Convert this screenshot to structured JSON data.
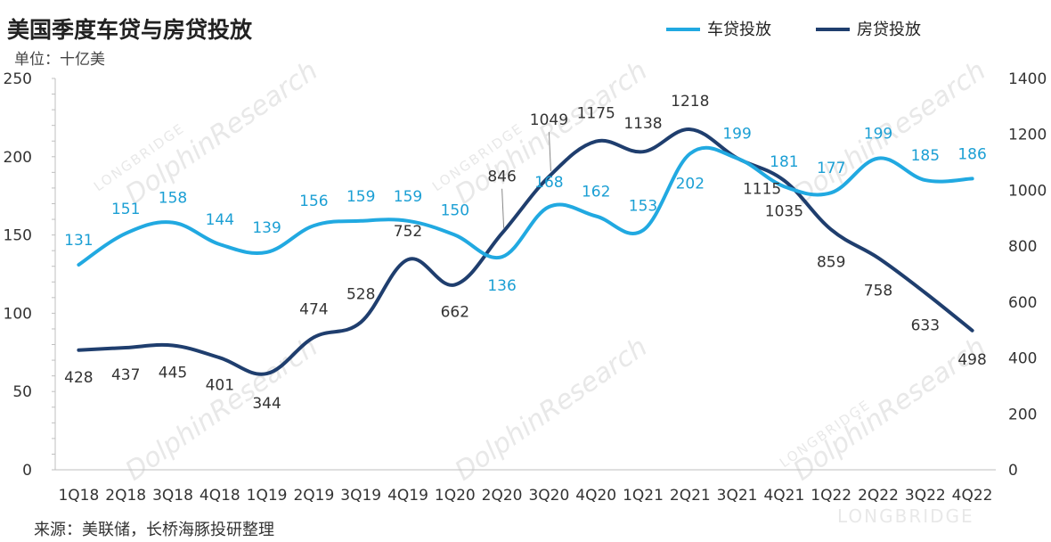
{
  "page": {
    "title": "美国季度车贷与房贷投放",
    "unit": "单位：十亿美",
    "source": "来源：美联储，长桥海豚投研整理",
    "watermark": {
      "brand": "DolphinResearch",
      "company": "LONGBRIDGE",
      "footer_logo": "LONGBRIDGE"
    }
  },
  "colors": {
    "car": "#21a9e1",
    "house": "#1f3e6e",
    "car_label": "#1b9fd4",
    "house_label": "#333333",
    "axis": "#bfbfbf"
  },
  "chart_data": {
    "type": "line",
    "title": "美国季度车贷与房贷投放",
    "xlabel": "",
    "ylabel": "单位：十亿美",
    "categories": [
      "1Q18",
      "2Q18",
      "3Q18",
      "4Q18",
      "1Q19",
      "2Q19",
      "3Q19",
      "4Q19",
      "1Q20",
      "2Q20",
      "3Q20",
      "4Q20",
      "1Q21",
      "2Q21",
      "3Q21",
      "4Q21",
      "1Q22",
      "2Q22",
      "3Q22",
      "4Q22"
    ],
    "ylim": [
      0,
      250
    ],
    "yticks": [
      0,
      50,
      100,
      150,
      200,
      250
    ],
    "y2lim": [
      0,
      1400
    ],
    "y2ticks": [
      0,
      200,
      400,
      600,
      800,
      1000,
      1200,
      1400
    ],
    "legend_position": "top-right",
    "series": [
      {
        "name": "车贷投放",
        "axis": "left",
        "smooth": true,
        "values": [
          131,
          151,
          158,
          144,
          139,
          156,
          159,
          159,
          150,
          136,
          168,
          162,
          153,
          202,
          199,
          181,
          177,
          199,
          185,
          186
        ]
      },
      {
        "name": "房贷投放",
        "axis": "right",
        "smooth": true,
        "values": [
          428,
          437,
          445,
          401,
          344,
          474,
          528,
          752,
          662,
          846,
          1049,
          1175,
          1138,
          1218,
          1115,
          1035,
          859,
          758,
          633,
          498
        ]
      }
    ]
  }
}
